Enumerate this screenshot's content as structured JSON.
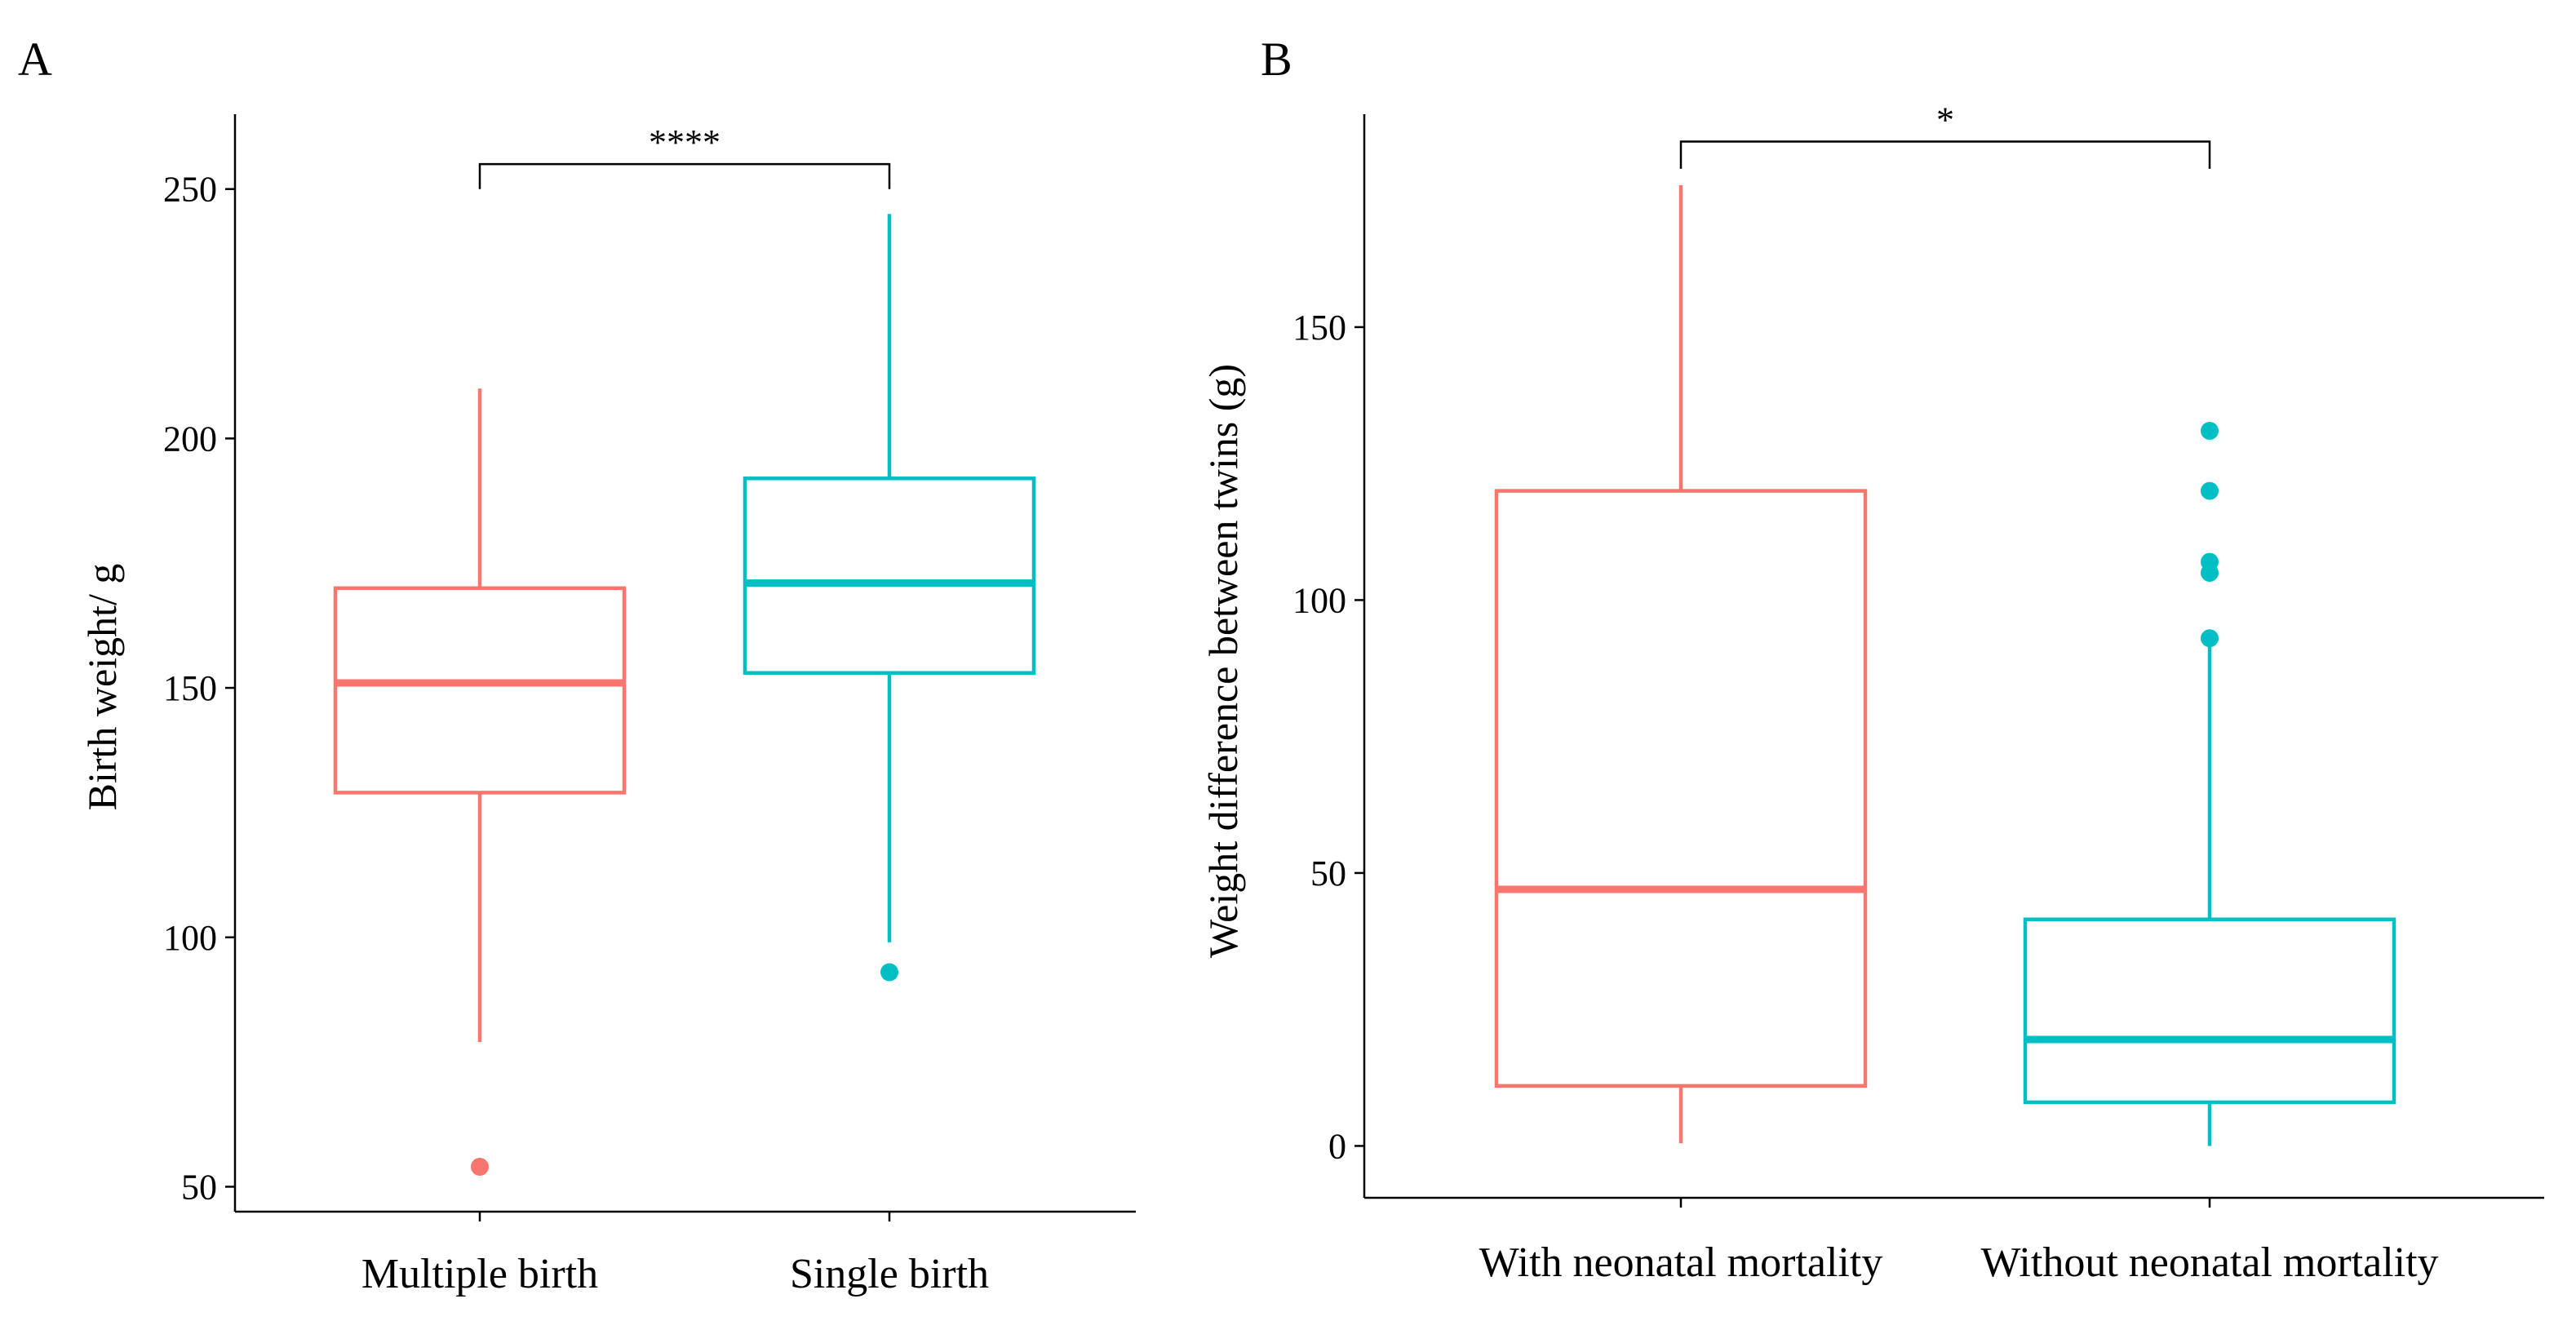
{
  "colors": {
    "group1": "#F8766D",
    "group2": "#00BFC4",
    "axis": "#000000"
  },
  "chart_data": [
    {
      "type": "boxplot",
      "panel_label": "A",
      "title": "",
      "xlabel": "",
      "ylabel": "Birth weight/ g",
      "ylim": [
        45,
        265
      ],
      "yticks": [
        50,
        100,
        150,
        200,
        250
      ],
      "categories": [
        "Multiple birth",
        "Single birth"
      ],
      "boxes": [
        {
          "category": "Multiple birth",
          "color_key": "group1",
          "whisker_low": 79,
          "q1": 129,
          "median": 151,
          "q3": 170,
          "whisker_high": 210,
          "outliers": [
            54
          ]
        },
        {
          "category": "Single birth",
          "color_key": "group2",
          "whisker_low": 99,
          "q1": 153,
          "median": 171,
          "q3": 192,
          "whisker_high": 245,
          "outliers": [
            93
          ]
        }
      ],
      "significance": {
        "label": "****",
        "from": 0,
        "to": 1,
        "y": 255,
        "tip_y": 250
      }
    },
    {
      "type": "boxplot",
      "panel_label": "B",
      "title": "",
      "xlabel": "",
      "ylabel": "Weight difference between twins (g)",
      "ylim": [
        -9.5,
        189
      ],
      "yticks": [
        0,
        50,
        100,
        150
      ],
      "categories": [
        "With neonatal mortality",
        "Without neonatal mortality"
      ],
      "boxes": [
        {
          "category": "With neonatal mortality",
          "color_key": "group1",
          "whisker_low": 0.5,
          "q1": 11,
          "median": 47,
          "q3": 120,
          "whisker_high": 176,
          "outliers": []
        },
        {
          "category": "Without neonatal mortality",
          "color_key": "group2",
          "whisker_low": 0,
          "q1": 8,
          "median": 19.5,
          "q3": 41.5,
          "whisker_high": 92,
          "outliers": [
            93,
            105,
            107,
            120,
            131
          ]
        }
      ],
      "significance": {
        "label": "*",
        "from": 0,
        "to": 1,
        "y": 184,
        "tip_y": 179
      }
    }
  ]
}
